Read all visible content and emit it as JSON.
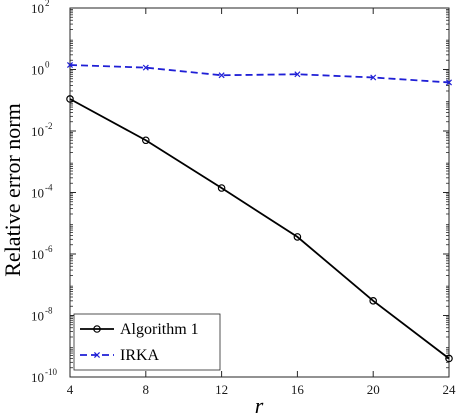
{
  "chart_data": {
    "type": "line",
    "xlabel": "r",
    "ylabel": "Relative error norm",
    "x": [
      4,
      8,
      12,
      16,
      20,
      24
    ],
    "xlim": [
      4,
      24
    ],
    "ylim": [
      1e-10,
      100
    ],
    "yscale": "log",
    "xticks": [
      "4",
      "8",
      "12",
      "16",
      "20",
      "24"
    ],
    "yticks": [
      {
        "base": "10",
        "exp": "-10",
        "value": 1e-10
      },
      {
        "base": "10",
        "exp": "-8",
        "value": 1e-08
      },
      {
        "base": "10",
        "exp": "-6",
        "value": 1e-06
      },
      {
        "base": "10",
        "exp": "-4",
        "value": 0.0001
      },
      {
        "base": "10",
        "exp": "-2",
        "value": 0.01
      },
      {
        "base": "10",
        "exp": "0",
        "value": 1
      },
      {
        "base": "10",
        "exp": "2",
        "value": 100
      }
    ],
    "grid": false,
    "legend_position": "bottom-left",
    "series": [
      {
        "name": "Algorithm 1",
        "color": "#000000",
        "line_style": "solid",
        "marker": "circle",
        "values": [
          0.11,
          0.005,
          0.00014,
          3.6e-06,
          3e-08,
          4e-10
        ]
      },
      {
        "name": "IRKA",
        "color": "#1f1fd6",
        "line_style": "dashed",
        "marker": "x",
        "values": [
          1.4,
          1.15,
          0.65,
          0.7,
          0.55,
          0.38
        ]
      }
    ]
  }
}
